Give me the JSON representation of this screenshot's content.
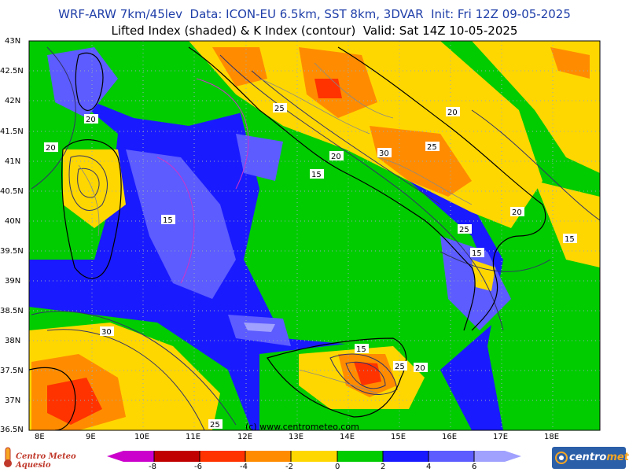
{
  "header": {
    "line1": "WRF-ARW 7km/45lev  Data: ICON-EU 6.5km, SST 8km, 3DVAR  Init: Fri 12Z 09-05-2025",
    "line2": "Lifted Index (shaded) & K Index (contour)  Valid: Sat 14Z 10-05-2025"
  },
  "map": {
    "lat_labels": [
      "43N",
      "42.5N",
      "42N",
      "41.5N",
      "41N",
      "40.5N",
      "40N",
      "39.5N",
      "39N",
      "38.5N",
      "38N",
      "37.5N",
      "37N",
      "36.5N"
    ],
    "lon_labels": [
      "8E",
      "9E",
      "10E",
      "11E",
      "12E",
      "13E",
      "14E",
      "15E",
      "16E",
      "17E",
      "18E"
    ],
    "watermark": "(c) www.centrometeo.com",
    "k_index_labels": [
      "20",
      "20",
      "25",
      "20",
      "30",
      "25",
      "20",
      "15",
      "15",
      "20",
      "25",
      "15",
      "15",
      "30",
      "15",
      "25",
      "20",
      "25"
    ]
  },
  "colorbar": {
    "ticks": [
      "-8",
      "-6",
      "-4",
      "-2",
      "0",
      "2",
      "4",
      "6"
    ],
    "colors": [
      "#cc00cc",
      "#c00000",
      "#ff3300",
      "#ff8c00",
      "#ffd700",
      "#00cc00",
      "#1a1aff",
      "#5c5cff",
      "#a0a0ff"
    ]
  },
  "logos": {
    "left": "Centro Meteo Aquesio",
    "right_a": "centro",
    "right_b": "meteo"
  }
}
